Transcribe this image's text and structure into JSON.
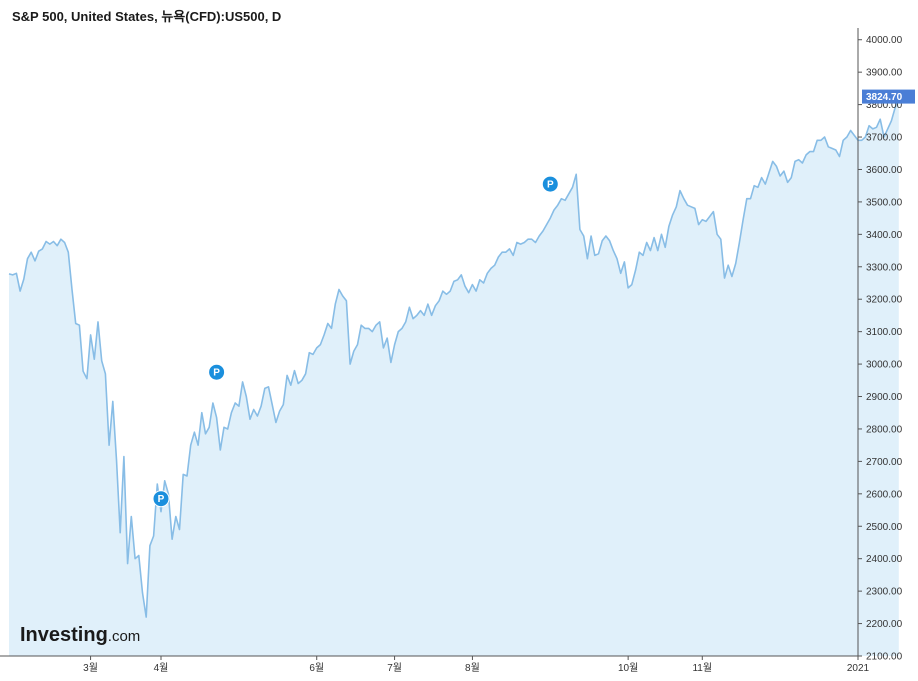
{
  "chart_data": {
    "type": "area",
    "title": "S&P 500, United States, 뉴욕(CFD):US500, D",
    "ylim": [
      2100,
      4030
    ],
    "y_ticks": [
      {
        "value": 2100,
        "label": "2100.00"
      },
      {
        "value": 2200,
        "label": "2200.00"
      },
      {
        "value": 2300,
        "label": "2300.00"
      },
      {
        "value": 2400,
        "label": "2400.00"
      },
      {
        "value": 2500,
        "label": "2500.00"
      },
      {
        "value": 2600,
        "label": "2600.00"
      },
      {
        "value": 2700,
        "label": "2700.00"
      },
      {
        "value": 2800,
        "label": "2800.00"
      },
      {
        "value": 2900,
        "label": "2900.00"
      },
      {
        "value": 3000,
        "label": "3000.00"
      },
      {
        "value": 3100,
        "label": "3100.00"
      },
      {
        "value": 3200,
        "label": "3200.00"
      },
      {
        "value": 3300,
        "label": "3300.00"
      },
      {
        "value": 3400,
        "label": "3400.00"
      },
      {
        "value": 3500,
        "label": "3500.00"
      },
      {
        "value": 3600,
        "label": "3600.00"
      },
      {
        "value": 3700,
        "label": "3700.00"
      },
      {
        "value": 3800,
        "label": "3800.00"
      },
      {
        "value": 3900,
        "label": "3900.00"
      },
      {
        "value": 4000,
        "label": "4000.00"
      }
    ],
    "x_range": [
      0,
      229
    ],
    "x_ticks": [
      {
        "value": 22,
        "label": "3월"
      },
      {
        "value": 41,
        "label": "4월"
      },
      {
        "value": 83,
        "label": "6월"
      },
      {
        "value": 104,
        "label": "7월"
      },
      {
        "value": 125,
        "label": "8월"
      },
      {
        "value": 167,
        "label": "10월"
      },
      {
        "value": 187,
        "label": "11월"
      },
      {
        "value": 229,
        "label": "2021"
      }
    ],
    "series": [
      {
        "values": [
          3278,
          3275,
          3280,
          3225,
          3262,
          3325,
          3345,
          3318,
          3348,
          3355,
          3378,
          3370,
          3378,
          3365,
          3385,
          3375,
          3345,
          3230,
          3125,
          3120,
          2978,
          2955,
          3090,
          3015,
          3130,
          3010,
          2970,
          2750,
          2885,
          2705,
          2480,
          2715,
          2385,
          2530,
          2400,
          2410,
          2295,
          2220,
          2440,
          2470,
          2630,
          2545,
          2640,
          2600,
          2460,
          2530,
          2490,
          2660,
          2655,
          2750,
          2790,
          2750,
          2850,
          2785,
          2805,
          2880,
          2835,
          2735,
          2805,
          2800,
          2850,
          2880,
          2870,
          2945,
          2900,
          2830,
          2860,
          2840,
          2870,
          2925,
          2930,
          2875,
          2820,
          2855,
          2875,
          2965,
          2935,
          2980,
          2940,
          2950,
          2970,
          3035,
          3030,
          3050,
          3060,
          3090,
          3125,
          3110,
          3185,
          3230,
          3210,
          3195,
          3000,
          3040,
          3060,
          3120,
          3110,
          3110,
          3100,
          3120,
          3130,
          3050,
          3080,
          3005,
          3060,
          3100,
          3110,
          3130,
          3175,
          3140,
          3150,
          3165,
          3150,
          3185,
          3150,
          3180,
          3195,
          3225,
          3215,
          3225,
          3255,
          3260,
          3275,
          3240,
          3220,
          3245,
          3225,
          3260,
          3250,
          3280,
          3295,
          3305,
          3330,
          3345,
          3345,
          3355,
          3335,
          3375,
          3370,
          3375,
          3385,
          3385,
          3375,
          3395,
          3410,
          3430,
          3450,
          3475,
          3490,
          3510,
          3505,
          3525,
          3545,
          3585,
          3415,
          3395,
          3325,
          3395,
          3335,
          3340,
          3380,
          3395,
          3380,
          3350,
          3325,
          3280,
          3315,
          3235,
          3245,
          3290,
          3345,
          3335,
          3375,
          3350,
          3390,
          3350,
          3400,
          3360,
          3425,
          3460,
          3485,
          3535,
          3510,
          3490,
          3485,
          3480,
          3430,
          3445,
          3440,
          3455,
          3470,
          3400,
          3385,
          3265,
          3305,
          3270,
          3310,
          3375,
          3445,
          3510,
          3510,
          3550,
          3545,
          3575,
          3555,
          3590,
          3625,
          3610,
          3580,
          3595,
          3560,
          3575,
          3625,
          3630,
          3620,
          3645,
          3655,
          3655,
          3690,
          3690,
          3700,
          3670,
          3665,
          3660,
          3640,
          3690,
          3700,
          3720,
          3705,
          3690,
          3690,
          3700,
          3735,
          3725,
          3730,
          3755,
          3700,
          3725,
          3750,
          3790,
          3824.7
        ]
      }
    ],
    "last_value_label": "3824.70",
    "markers": [
      {
        "x": 41,
        "value": 2585,
        "label": "P"
      },
      {
        "x": 56,
        "value": 2975,
        "label": "P"
      },
      {
        "x": 146,
        "value": 3555,
        "label": "P"
      }
    ],
    "grid": false,
    "line_color": "#88bde6",
    "fill_color": "#e0f0fa",
    "marker_color": "#1a8fdd",
    "label_bg_color": "#4a7ed6"
  },
  "watermark": {
    "brand": "Investing",
    "suffix": ".com"
  }
}
